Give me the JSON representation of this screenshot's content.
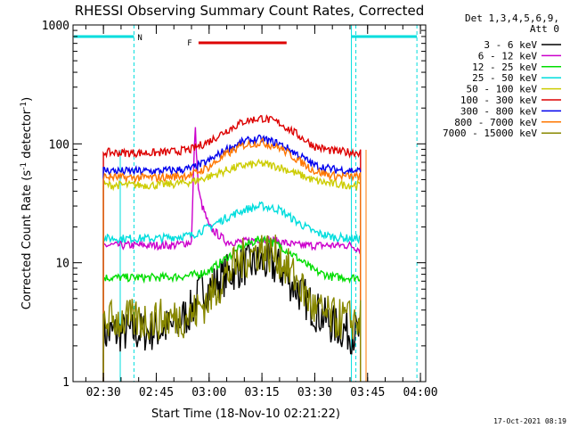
{
  "chart_data": {
    "type": "line",
    "title": "RHESSI Observing Summary Count Rates, Corrected",
    "xlabel": "Start Time (18-Nov-10 02:21:22)",
    "ylabel": "Corrected Count Rate (s^-1 detector^-1)",
    "ylabel_main": "Corrected Count Rate (s",
    "ylabel_sup1": "-1",
    "ylabel_mid": " detector",
    "ylabel_sup2": "-1",
    "ylabel_end": ")",
    "yscale": "log",
    "ylim": [
      1,
      1000
    ],
    "yticks": [
      {
        "v": 1,
        "label": "1"
      },
      {
        "v": 10,
        "label": "10"
      },
      {
        "v": 100,
        "label": "100"
      },
      {
        "v": 1000,
        "label": "1000"
      }
    ],
    "xlim": [
      "02:21:22",
      "04:01:30"
    ],
    "xticks": [
      {
        "t": "02:30",
        "label": "02:30"
      },
      {
        "t": "02:45",
        "label": "02:45"
      },
      {
        "t": "03:00",
        "label": "03:00"
      },
      {
        "t": "03:15",
        "label": "03:15"
      },
      {
        "t": "03:30",
        "label": "03:30"
      },
      {
        "t": "03:45",
        "label": "03:45"
      },
      {
        "t": "04:00",
        "label": "04:00"
      }
    ],
    "detector_info": [
      "Det 1,3,4,5,6,9,",
      "Att 0"
    ],
    "legend_position": "right",
    "series": [
      {
        "name": "3 - 6 keV",
        "color": "#000000",
        "x": [
          "02:30",
          "02:35",
          "02:40",
          "02:45",
          "02:50",
          "02:55",
          "02:58",
          "03:00",
          "03:05",
          "03:10",
          "03:15",
          "03:20",
          "03:25",
          "03:30",
          "03:35",
          "03:40",
          "03:43"
        ],
        "y": [
          2.5,
          2.6,
          2.6,
          2.7,
          2.9,
          4.0,
          6.0,
          6.0,
          8.0,
          9.5,
          10.0,
          9.0,
          6.0,
          4.0,
          3.0,
          2.6,
          2.5
        ]
      },
      {
        "name": "6 - 12 keV",
        "color": "#cc00cc",
        "x": [
          "02:30",
          "02:35",
          "02:40",
          "02:45",
          "02:50",
          "02:55",
          "02:56",
          "02:57",
          "02:58",
          "02:59",
          "03:00",
          "03:05",
          "03:10",
          "03:15",
          "03:20",
          "03:25",
          "03:30",
          "03:35",
          "03:40",
          "03:43"
        ],
        "y": [
          14,
          14,
          14,
          14,
          14,
          15,
          150,
          40,
          30,
          25,
          20,
          15,
          15,
          16,
          15,
          14,
          14,
          14,
          14,
          13
        ]
      },
      {
        "name": "12 - 25 keV",
        "color": "#00dd00",
        "x": [
          "02:30",
          "02:35",
          "02:40",
          "02:45",
          "02:50",
          "02:55",
          "03:00",
          "03:05",
          "03:10",
          "03:15",
          "03:20",
          "03:25",
          "03:30",
          "03:35",
          "03:40",
          "03:43"
        ],
        "y": [
          7.5,
          7.5,
          7.5,
          7.5,
          7.6,
          7.8,
          8.5,
          11,
          14,
          16,
          14,
          11,
          8.5,
          7.6,
          7.5,
          7.5
        ]
      },
      {
        "name": "25 - 50 keV",
        "color": "#00dddd",
        "x": [
          "02:30",
          "02:35",
          "02:40",
          "02:45",
          "02:50",
          "02:55",
          "03:00",
          "03:05",
          "03:10",
          "03:15",
          "03:20",
          "03:25",
          "03:30",
          "03:35",
          "03:40",
          "03:43"
        ],
        "y": [
          16,
          16,
          16,
          16,
          16.5,
          17,
          20,
          24,
          28,
          30,
          28,
          22,
          18,
          16.5,
          16,
          16
        ]
      },
      {
        "name": "50 - 100 keV",
        "color": "#cccc00",
        "x": [
          "02:30",
          "02:35",
          "02:40",
          "02:45",
          "02:50",
          "02:55",
          "03:00",
          "03:05",
          "03:10",
          "03:15",
          "03:20",
          "03:25",
          "03:30",
          "03:35",
          "03:40",
          "03:43"
        ],
        "y": [
          45,
          45,
          45,
          45,
          46,
          48,
          53,
          60,
          66,
          68,
          64,
          56,
          49,
          46,
          45,
          45
        ]
      },
      {
        "name": "100 - 300 keV",
        "color": "#dd0000",
        "x": [
          "02:30",
          "02:35",
          "02:40",
          "02:45",
          "02:50",
          "02:55",
          "03:00",
          "03:05",
          "03:10",
          "03:15",
          "03:20",
          "03:25",
          "03:30",
          "03:35",
          "03:40",
          "03:43"
        ],
        "y": [
          85,
          84,
          84,
          84,
          86,
          90,
          105,
          130,
          155,
          165,
          150,
          120,
          95,
          87,
          85,
          85
        ]
      },
      {
        "name": "300 - 800 keV",
        "color": "#0000ee",
        "x": [
          "02:30",
          "02:35",
          "02:40",
          "02:45",
          "02:50",
          "02:55",
          "03:00",
          "03:05",
          "03:10",
          "03:15",
          "03:20",
          "03:25",
          "03:30",
          "03:35",
          "03:40",
          "03:43"
        ],
        "y": [
          60,
          59,
          59,
          59,
          60,
          62,
          72,
          90,
          105,
          110,
          100,
          82,
          66,
          61,
          60,
          59
        ]
      },
      {
        "name": "800 - 7000 keV",
        "color": "#ff7700",
        "x": [
          "02:30",
          "02:35",
          "02:40",
          "02:45",
          "02:50",
          "02:55",
          "03:00",
          "03:05",
          "03:10",
          "03:15",
          "03:20",
          "03:25",
          "03:30",
          "03:35",
          "03:40",
          "03:43"
        ],
        "y": [
          53,
          52,
          52,
          52,
          53,
          55,
          64,
          82,
          98,
          103,
          93,
          74,
          59,
          54,
          53,
          53
        ]
      },
      {
        "name": "7000 - 15000 keV",
        "color": "#888800",
        "x": [
          "02:30",
          "02:35",
          "02:40",
          "02:45",
          "02:50",
          "02:55",
          "03:00",
          "03:05",
          "03:10",
          "03:15",
          "03:20",
          "03:25",
          "03:30",
          "03:35",
          "03:40",
          "03:43"
        ],
        "y": [
          3.3,
          3.3,
          3.3,
          3.3,
          3.4,
          3.6,
          5.0,
          8.0,
          11,
          13,
          11,
          7.0,
          4.0,
          3.4,
          3.3,
          3.3
        ]
      }
    ],
    "markers": [
      {
        "label": "N",
        "type": "night",
        "color": "#00dddd",
        "start": "02:38:40",
        "end": "03:41:40"
      },
      {
        "label": "",
        "type": "night",
        "color": "#00dddd",
        "start": "03:59:00",
        "end": "04:01:30"
      },
      {
        "label": "F",
        "type": "flare",
        "color": "#dd0000",
        "start": "02:57",
        "end": "03:22"
      }
    ],
    "footer_timestamp": "17-Oct-2021 08:19"
  }
}
